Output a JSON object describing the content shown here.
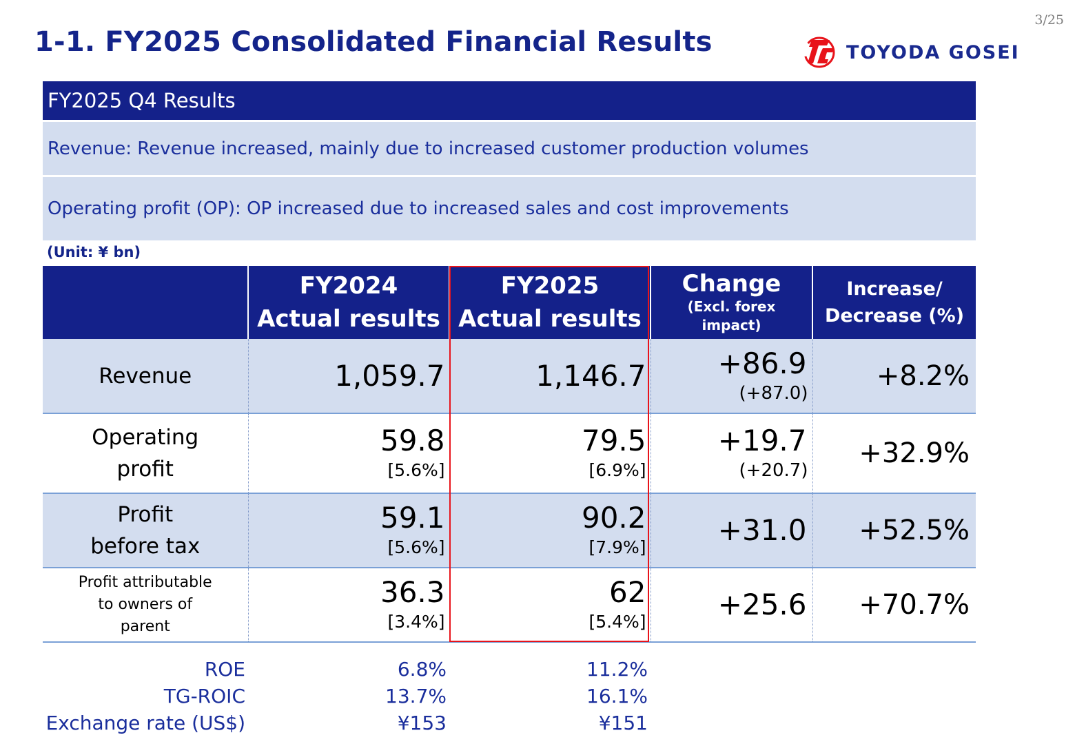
{
  "page": {
    "number": "3/25",
    "title": "1-1. FY2025 Consolidated Financial Results",
    "logo_text": "TOYODA GOSEI"
  },
  "summary": {
    "header": "FY2025 Q4 Results",
    "rows": [
      "Revenue: Revenue increased, mainly due to increased customer production volumes",
      "Operating profit (OP): OP increased due to increased sales and cost improvements"
    ]
  },
  "unit_note": "(Unit: ¥ bn)",
  "table": {
    "headers": {
      "fy2024_line1": "FY2024",
      "fy2024_line2": "Actual results",
      "fy2025_line1": "FY2025",
      "fy2025_line2": "Actual results",
      "change_line1": "Change",
      "change_line2": "(Excl. forex",
      "change_line3": "impact)",
      "increase_line1": "Increase/",
      "increase_line2": "Decrease (%)"
    },
    "rows": [
      {
        "label_line1": "Revenue",
        "label_line2": "",
        "label_line3": "",
        "fy2024": "1,059.7",
        "fy2024_ratio": "",
        "fy2025": "1,146.7",
        "fy2025_ratio": "",
        "change": "+86.9",
        "change_excl_forex": "(+87.0)",
        "pct": "+8.2%"
      },
      {
        "label_line1": "Operating",
        "label_line2": "profit",
        "label_line3": "",
        "fy2024": "59.8",
        "fy2024_ratio": "[5.6%]",
        "fy2025": "79.5",
        "fy2025_ratio": "[6.9%]",
        "change": "+19.7",
        "change_excl_forex": "(+20.7)",
        "pct": "+32.9%"
      },
      {
        "label_line1": "Profit",
        "label_line2": "before tax",
        "label_line3": "",
        "fy2024": "59.1",
        "fy2024_ratio": "[5.6%]",
        "fy2025": "90.2",
        "fy2025_ratio": "[7.9%]",
        "change": "+31.0",
        "change_excl_forex": "",
        "pct": "+52.5%"
      },
      {
        "label_line1": "Profit attributable",
        "label_line2": "to owners of",
        "label_line3": "parent",
        "fy2024": "36.3",
        "fy2024_ratio": "[3.4%]",
        "fy2025": "62",
        "fy2025_ratio": "[5.4%]",
        "change": "+25.6",
        "change_excl_forex": "",
        "pct": "+70.7%"
      }
    ]
  },
  "kpis": [
    {
      "label": "ROE",
      "fy2024": "6.8%",
      "fy2025": "11.2%"
    },
    {
      "label": "TG-ROIC",
      "fy2024": "13.7%",
      "fy2025": "16.1%"
    },
    {
      "label": "Exchange rate (US$)",
      "fy2024": "¥153",
      "fy2025": "¥151"
    }
  ],
  "colors": {
    "navy": "#14218a",
    "row_shade": "#d3ddef",
    "text_blue": "#1a2e9c",
    "highlight_red": "#e8131a",
    "logo_red": "#e8131a"
  }
}
